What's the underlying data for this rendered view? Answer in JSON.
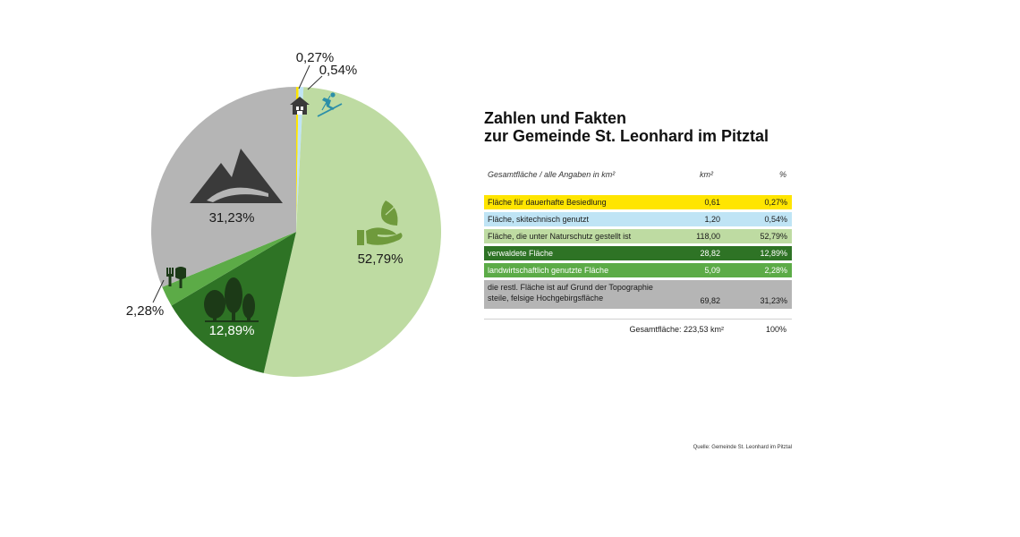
{
  "colors": {
    "yellow": "#ffe500",
    "light_blue": "#bfe4f5",
    "light_green": "#bedba2",
    "dark_green": "#2e7325",
    "medium_green": "#5cab47",
    "gray": "#b5b5b5",
    "icon_dark": "#3a3a3a",
    "icon_green": "#6f9a3c",
    "icon_teal": "#2c8fa8"
  },
  "chart_data": {
    "type": "pie",
    "slices": [
      {
        "label": "Fläche für dauerhafte Besiedlung",
        "value": 0.27,
        "display": "0,27%",
        "color": "#ffe500",
        "icon": "house-icon"
      },
      {
        "label": "Fläche, skitechnisch genutzt",
        "value": 0.54,
        "display": "0,54%",
        "color": "#bfe4f5",
        "icon": "skier-icon"
      },
      {
        "label": "Fläche, die unter Naturschutz gestellt ist",
        "value": 52.79,
        "display": "52,79%",
        "color": "#bedba2",
        "icon": "hand-leaf-icon"
      },
      {
        "label": "verwaldete Fläche",
        "value": 12.89,
        "display": "12,89%",
        "color": "#2e7325",
        "icon": "trees-icon"
      },
      {
        "label": "landwirtschaftlich genutzte Fläche",
        "value": 2.28,
        "display": "2,28%",
        "color": "#5cab47",
        "icon": "garden-tools-icon"
      },
      {
        "label": "die restl. Fläche ist auf Grund der Topographie steile, felsige Hochgebirgsfläche",
        "value": 31.23,
        "display": "31,23%",
        "color": "#b5b5b5",
        "icon": "mountain-icon"
      }
    ]
  },
  "info": {
    "title_line1": "Zahlen und Fakten",
    "title_line2": "zur Gemeinde St. Leonhard im Pitztal",
    "header": {
      "col1": "Gesamtfläche / alle Angaben in km²",
      "col2": "km²",
      "col3": "%"
    },
    "rows": [
      {
        "label": "Fläche für dauerhafte Besiedlung",
        "km2": "0,61",
        "pct": "0,27%",
        "bg": "#ffe500",
        "fg": "#1a1a1a"
      },
      {
        "label": "Fläche, skitechnisch genutzt",
        "km2": "1,20",
        "pct": "0,54%",
        "bg": "#bfe4f5",
        "fg": "#1a1a1a"
      },
      {
        "label": "Fläche, die unter Naturschutz gestellt ist",
        "km2": "118,00",
        "pct": "52,79%",
        "bg": "#bedba2",
        "fg": "#1a1a1a"
      },
      {
        "label": "verwaldete Fläche",
        "km2": "28,82",
        "pct": "12,89%",
        "bg": "#2e7325",
        "fg": "#ffffff"
      },
      {
        "label": "landwirtschaftlich genutzte Fläche",
        "km2": "5,09",
        "pct": "2,28%",
        "bg": "#5cab47",
        "fg": "#ffffff"
      },
      {
        "label_line1": "die restl. Fläche ist auf Grund der Topographie",
        "label_line2": "steile, felsige Hochgebirgsfläche",
        "km2": "69,82",
        "pct": "31,23%",
        "bg": "#b5b5b5",
        "fg": "#1a1a1a"
      }
    ],
    "total_label": "Gesamtfläche: 223,53 km²",
    "total_pct": "100%"
  },
  "source": "Quelle: Gemeinde St. Leonhard im Pitztal"
}
